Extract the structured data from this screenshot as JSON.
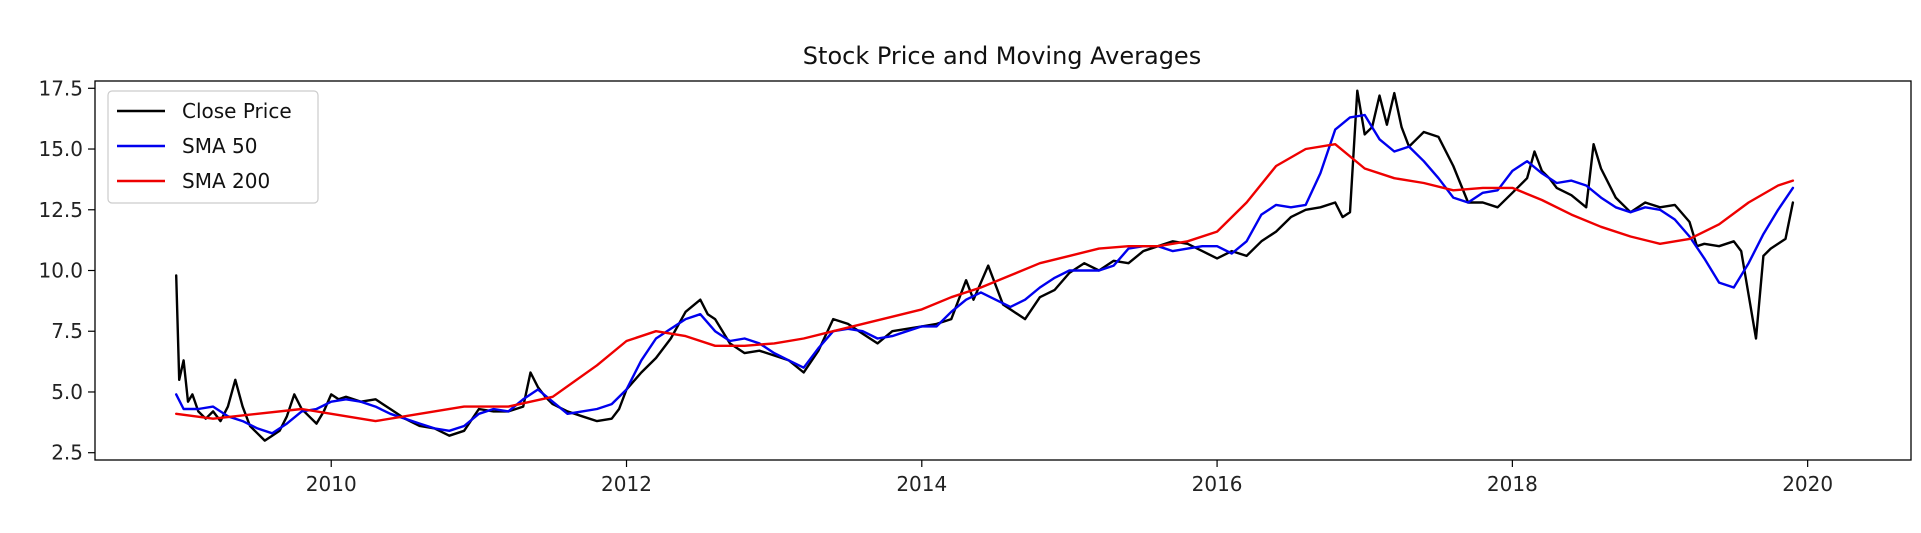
{
  "chart_data": {
    "type": "line",
    "title": "Stock Price and Moving Averages",
    "xlabel": "",
    "ylabel": "",
    "xlim": [
      2008.4,
      2020.7
    ],
    "ylim": [
      2.2,
      17.8
    ],
    "x_ticks": [
      2010,
      2012,
      2014,
      2016,
      2018,
      2020
    ],
    "x_tick_labels": [
      "2010",
      "2012",
      "2014",
      "2016",
      "2018",
      "2020"
    ],
    "y_ticks": [
      2.5,
      5.0,
      7.5,
      10.0,
      12.5,
      15.0,
      17.5
    ],
    "y_tick_labels": [
      "2.5",
      "5.0",
      "7.5",
      "10.0",
      "12.5",
      "15.0",
      "17.5"
    ],
    "grid": false,
    "legend_position": "top-left",
    "series": [
      {
        "name": "Close Price",
        "color": "#000000",
        "x": [
          2008.95,
          2008.97,
          2009.0,
          2009.03,
          2009.06,
          2009.1,
          2009.15,
          2009.2,
          2009.25,
          2009.3,
          2009.35,
          2009.4,
          2009.45,
          2009.5,
          2009.55,
          2009.6,
          2009.65,
          2009.7,
          2009.75,
          2009.8,
          2009.85,
          2009.9,
          2009.95,
          2010.0,
          2010.05,
          2010.1,
          2010.2,
          2010.3,
          2010.4,
          2010.5,
          2010.6,
          2010.7,
          2010.8,
          2010.9,
          2011.0,
          2011.1,
          2011.2,
          2011.3,
          2011.35,
          2011.4,
          2011.45,
          2011.5,
          2011.6,
          2011.7,
          2011.8,
          2011.9,
          2011.95,
          2012.0,
          2012.1,
          2012.2,
          2012.3,
          2012.4,
          2012.5,
          2012.55,
          2012.6,
          2012.7,
          2012.8,
          2012.9,
          2013.0,
          2013.1,
          2013.2,
          2013.3,
          2013.4,
          2013.5,
          2013.6,
          2013.7,
          2013.8,
          2013.9,
          2014.0,
          2014.1,
          2014.2,
          2014.3,
          2014.35,
          2014.45,
          2014.5,
          2014.55,
          2014.6,
          2014.7,
          2014.8,
          2014.9,
          2015.0,
          2015.1,
          2015.2,
          2015.3,
          2015.4,
          2015.5,
          2015.6,
          2015.7,
          2015.8,
          2015.9,
          2016.0,
          2016.1,
          2016.2,
          2016.3,
          2016.4,
          2016.5,
          2016.6,
          2016.7,
          2016.8,
          2016.85,
          2016.9,
          2016.95,
          2017.0,
          2017.05,
          2017.1,
          2017.15,
          2017.2,
          2017.25,
          2017.3,
          2017.35,
          2017.4,
          2017.5,
          2017.6,
          2017.7,
          2017.8,
          2017.9,
          2018.0,
          2018.1,
          2018.15,
          2018.2,
          2018.25,
          2018.3,
          2018.4,
          2018.5,
          2018.55,
          2018.6,
          2018.7,
          2018.8,
          2018.9,
          2019.0,
          2019.1,
          2019.2,
          2019.25,
          2019.3,
          2019.4,
          2019.5,
          2019.55,
          2019.6,
          2019.65,
          2019.7,
          2019.75,
          2019.8,
          2019.85,
          2019.9
        ],
        "values": [
          9.8,
          5.5,
          6.3,
          4.6,
          4.9,
          4.2,
          3.9,
          4.2,
          3.8,
          4.4,
          5.5,
          4.4,
          3.6,
          3.3,
          3.0,
          3.2,
          3.4,
          4.0,
          4.9,
          4.3,
          4.0,
          3.7,
          4.2,
          4.9,
          4.7,
          4.8,
          4.6,
          4.7,
          4.3,
          3.9,
          3.6,
          3.5,
          3.2,
          3.4,
          4.3,
          4.2,
          4.2,
          4.4,
          5.8,
          5.2,
          4.8,
          4.5,
          4.2,
          4.0,
          3.8,
          3.9,
          4.3,
          5.1,
          5.8,
          6.4,
          7.2,
          8.3,
          8.8,
          8.2,
          8.0,
          7.0,
          6.6,
          6.7,
          6.5,
          6.3,
          5.8,
          6.7,
          8.0,
          7.8,
          7.4,
          7.0,
          7.5,
          7.6,
          7.7,
          7.8,
          8.0,
          9.6,
          8.8,
          10.2,
          9.4,
          8.6,
          8.4,
          8.0,
          8.9,
          9.2,
          9.9,
          10.3,
          10.0,
          10.4,
          10.3,
          10.8,
          11.0,
          11.2,
          11.1,
          10.8,
          10.5,
          10.8,
          10.6,
          11.2,
          11.6,
          12.2,
          12.5,
          12.6,
          12.8,
          12.2,
          12.4,
          17.4,
          15.6,
          15.9,
          17.2,
          16.0,
          17.3,
          15.9,
          15.1,
          15.4,
          15.7,
          15.5,
          14.3,
          12.8,
          12.8,
          12.6,
          13.2,
          13.8,
          14.9,
          14.1,
          13.8,
          13.4,
          13.1,
          12.6,
          15.2,
          14.2,
          13.0,
          12.4,
          12.8,
          12.6,
          12.7,
          12.0,
          11.0,
          11.1,
          11.0,
          11.2,
          10.8,
          9.0,
          7.2,
          10.6,
          10.9,
          11.1,
          11.3,
          12.8
        ]
      },
      {
        "name": "SMA 50",
        "color": "#0000ee",
        "x": [
          2008.95,
          2009.0,
          2009.1,
          2009.2,
          2009.3,
          2009.4,
          2009.5,
          2009.6,
          2009.7,
          2009.8,
          2009.9,
          2010.0,
          2010.1,
          2010.2,
          2010.3,
          2010.4,
          2010.5,
          2010.6,
          2010.7,
          2010.8,
          2010.9,
          2011.0,
          2011.1,
          2011.2,
          2011.3,
          2011.4,
          2011.5,
          2011.6,
          2011.7,
          2011.8,
          2011.9,
          2012.0,
          2012.1,
          2012.2,
          2012.3,
          2012.4,
          2012.5,
          2012.6,
          2012.7,
          2012.8,
          2012.9,
          2013.0,
          2013.1,
          2013.2,
          2013.3,
          2013.4,
          2013.5,
          2013.6,
          2013.7,
          2013.8,
          2013.9,
          2014.0,
          2014.1,
          2014.2,
          2014.3,
          2014.4,
          2014.5,
          2014.6,
          2014.7,
          2014.8,
          2014.9,
          2015.0,
          2015.1,
          2015.2,
          2015.3,
          2015.4,
          2015.5,
          2015.6,
          2015.7,
          2015.8,
          2015.9,
          2016.0,
          2016.1,
          2016.2,
          2016.3,
          2016.4,
          2016.5,
          2016.6,
          2016.7,
          2016.8,
          2016.9,
          2017.0,
          2017.1,
          2017.2,
          2017.3,
          2017.4,
          2017.5,
          2017.6,
          2017.7,
          2017.8,
          2017.9,
          2018.0,
          2018.1,
          2018.2,
          2018.3,
          2018.4,
          2018.5,
          2018.6,
          2018.7,
          2018.8,
          2018.9,
          2019.0,
          2019.1,
          2019.2,
          2019.3,
          2019.4,
          2019.5,
          2019.6,
          2019.7,
          2019.8,
          2019.9
        ],
        "values": [
          4.9,
          4.3,
          4.3,
          4.4,
          4.0,
          3.8,
          3.5,
          3.3,
          3.7,
          4.2,
          4.3,
          4.6,
          4.7,
          4.6,
          4.4,
          4.1,
          3.9,
          3.7,
          3.5,
          3.4,
          3.6,
          4.1,
          4.3,
          4.2,
          4.7,
          5.1,
          4.6,
          4.1,
          4.2,
          4.3,
          4.5,
          5.1,
          6.3,
          7.2,
          7.6,
          8.0,
          8.2,
          7.5,
          7.1,
          7.2,
          7.0,
          6.6,
          6.3,
          6.0,
          6.8,
          7.5,
          7.6,
          7.5,
          7.2,
          7.3,
          7.5,
          7.7,
          7.7,
          8.3,
          8.8,
          9.1,
          8.8,
          8.5,
          8.8,
          9.3,
          9.7,
          10.0,
          10.0,
          10.0,
          10.2,
          10.9,
          11.0,
          11.0,
          10.8,
          10.9,
          11.0,
          11.0,
          10.7,
          11.2,
          12.3,
          12.7,
          12.6,
          12.7,
          14.0,
          15.8,
          16.3,
          16.4,
          15.4,
          14.9,
          15.1,
          14.5,
          13.8,
          13.0,
          12.8,
          13.2,
          13.3,
          14.1,
          14.5,
          14.0,
          13.6,
          13.7,
          13.5,
          13.0,
          12.6,
          12.4,
          12.6,
          12.5,
          12.1,
          11.4,
          10.5,
          9.5,
          9.3,
          10.3,
          11.5,
          12.5,
          13.4
        ]
      },
      {
        "name": "SMA 200",
        "color": "#ee0000",
        "x": [
          2008.95,
          2009.2,
          2009.5,
          2009.8,
          2010.0,
          2010.3,
          2010.6,
          2010.9,
          2011.2,
          2011.5,
          2011.8,
          2012.0,
          2012.2,
          2012.4,
          2012.6,
          2012.8,
          2013.0,
          2013.2,
          2013.4,
          2013.6,
          2013.8,
          2014.0,
          2014.2,
          2014.4,
          2014.6,
          2014.8,
          2015.0,
          2015.2,
          2015.4,
          2015.6,
          2015.8,
          2016.0,
          2016.2,
          2016.4,
          2016.6,
          2016.8,
          2017.0,
          2017.2,
          2017.4,
          2017.6,
          2017.8,
          2018.0,
          2018.2,
          2018.4,
          2018.6,
          2018.8,
          2019.0,
          2019.2,
          2019.4,
          2019.6,
          2019.8,
          2019.9
        ],
        "values": [
          4.1,
          3.9,
          4.1,
          4.3,
          4.1,
          3.8,
          4.1,
          4.4,
          4.4,
          4.8,
          6.1,
          7.1,
          7.5,
          7.3,
          6.9,
          6.9,
          7.0,
          7.2,
          7.5,
          7.8,
          8.1,
          8.4,
          8.9,
          9.3,
          9.8,
          10.3,
          10.6,
          10.9,
          11.0,
          11.0,
          11.2,
          11.6,
          12.8,
          14.3,
          15.0,
          15.2,
          14.2,
          13.8,
          13.6,
          13.3,
          13.4,
          13.4,
          12.9,
          12.3,
          11.8,
          11.4,
          11.1,
          11.3,
          11.9,
          12.8,
          13.5,
          13.7
        ]
      }
    ]
  }
}
